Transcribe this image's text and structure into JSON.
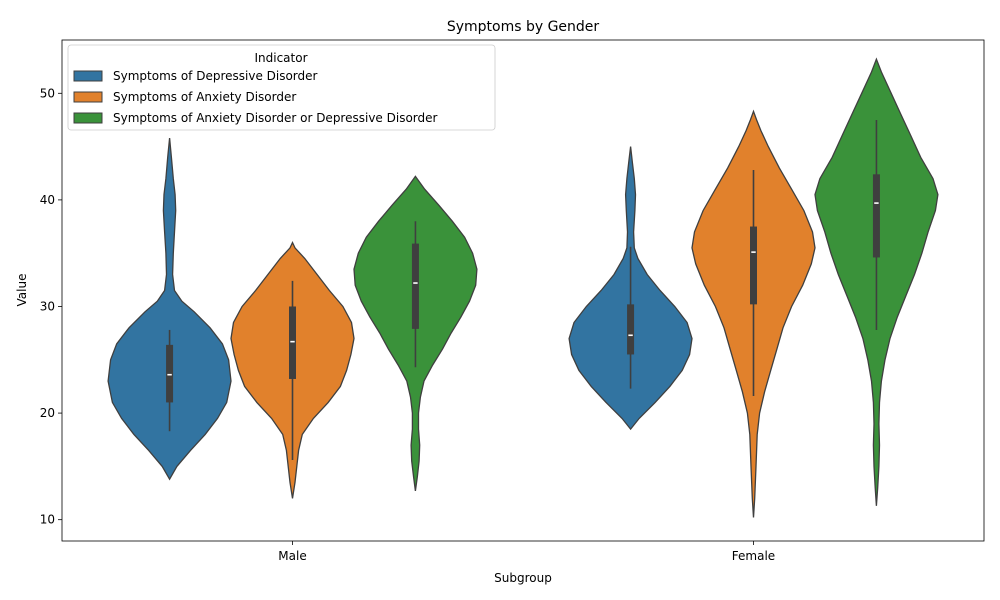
{
  "chart_data": {
    "type": "violin",
    "title": "Symptoms by Gender",
    "xlabel": "Subgroup",
    "ylabel": "Value",
    "ylim": [
      8,
      55
    ],
    "yticks": [
      10,
      20,
      30,
      40,
      50
    ],
    "categories": [
      "Male",
      "Female"
    ],
    "legend": {
      "title": "Indicator",
      "placement": "upper-left"
    },
    "series": [
      {
        "name": "Symptoms of Depressive Disorder",
        "color": "#3274a1",
        "groups": [
          {
            "category": "Male",
            "kde_range": [
              13.8,
              45.8
            ],
            "whisker": [
              18.3,
              27.8
            ],
            "q1": 21.0,
            "median": 23.6,
            "q3": 26.4,
            "density": [
              [
                13.8,
                0
              ],
              [
                15,
                0.12
              ],
              [
                16.5,
                0.34
              ],
              [
                18,
                0.58
              ],
              [
                19.5,
                0.78
              ],
              [
                21,
                0.93
              ],
              [
                23,
                1.0
              ],
              [
                25,
                0.96
              ],
              [
                26.5,
                0.86
              ],
              [
                28,
                0.66
              ],
              [
                29.5,
                0.4
              ],
              [
                30.5,
                0.2
              ],
              [
                31.5,
                0.08
              ],
              [
                33,
                0.05
              ],
              [
                35,
                0.06
              ],
              [
                37,
                0.08
              ],
              [
                39,
                0.1
              ],
              [
                40.5,
                0.09
              ],
              [
                42,
                0.06
              ],
              [
                44,
                0.03
              ],
              [
                45.8,
                0
              ]
            ]
          },
          {
            "category": "Female",
            "kde_range": [
              18.5,
              45.0
            ],
            "whisker": [
              22.3,
              35.6
            ],
            "q1": 25.5,
            "median": 27.3,
            "q3": 30.2,
            "density": [
              [
                18.5,
                0
              ],
              [
                19.5,
                0.14
              ],
              [
                21,
                0.4
              ],
              [
                22.5,
                0.64
              ],
              [
                24,
                0.84
              ],
              [
                25.5,
                0.96
              ],
              [
                27,
                1.0
              ],
              [
                28.5,
                0.92
              ],
              [
                30,
                0.72
              ],
              [
                31.5,
                0.48
              ],
              [
                33,
                0.27
              ],
              [
                34.5,
                0.12
              ],
              [
                35.5,
                0.06
              ],
              [
                37,
                0.05
              ],
              [
                39,
                0.07
              ],
              [
                40.5,
                0.08
              ],
              [
                42,
                0.06
              ],
              [
                43.5,
                0.03
              ],
              [
                45,
                0
              ]
            ]
          }
        ]
      },
      {
        "name": "Symptoms of Anxiety Disorder",
        "color": "#e1812c",
        "groups": [
          {
            "category": "Male",
            "kde_range": [
              12.0,
              36.0
            ],
            "whisker": [
              15.6,
              32.4
            ],
            "q1": 23.2,
            "median": 26.7,
            "q3": 30.0,
            "density": [
              [
                12,
                0
              ],
              [
                13.5,
                0.04
              ],
              [
                15,
                0.07
              ],
              [
                16.5,
                0.1
              ],
              [
                18,
                0.16
              ],
              [
                19.5,
                0.34
              ],
              [
                21,
                0.58
              ],
              [
                22.5,
                0.78
              ],
              [
                24,
                0.88
              ],
              [
                25.5,
                0.95
              ],
              [
                27,
                1.0
              ],
              [
                28.5,
                0.96
              ],
              [
                30,
                0.82
              ],
              [
                31.5,
                0.6
              ],
              [
                33,
                0.4
              ],
              [
                34.5,
                0.2
              ],
              [
                35.5,
                0.04
              ],
              [
                36,
                0
              ]
            ]
          },
          {
            "category": "Female",
            "kde_range": [
              10.2,
              48.3
            ],
            "whisker": [
              21.6,
              42.8
            ],
            "q1": 30.2,
            "median": 35.1,
            "q3": 37.5,
            "density": [
              [
                10.2,
                0
              ],
              [
                12,
                0.02
              ],
              [
                15,
                0.04
              ],
              [
                18,
                0.06
              ],
              [
                20,
                0.1
              ],
              [
                22,
                0.18
              ],
              [
                24,
                0.28
              ],
              [
                26,
                0.38
              ],
              [
                28,
                0.48
              ],
              [
                30,
                0.62
              ],
              [
                32,
                0.8
              ],
              [
                34,
                0.94
              ],
              [
                35.5,
                1.0
              ],
              [
                37,
                0.96
              ],
              [
                39,
                0.82
              ],
              [
                41,
                0.62
              ],
              [
                43,
                0.42
              ],
              [
                45,
                0.24
              ],
              [
                46.5,
                0.12
              ],
              [
                47.5,
                0.05
              ],
              [
                48.3,
                0
              ]
            ]
          }
        ]
      },
      {
        "name": "Symptoms of Anxiety Disorder or Depressive Disorder",
        "color": "#3a923a",
        "groups": [
          {
            "category": "Male",
            "kde_range": [
              12.7,
              42.2
            ],
            "whisker": [
              24.3,
              38.0
            ],
            "q1": 27.9,
            "median": 32.2,
            "q3": 35.9,
            "density": [
              [
                12.7,
                0
              ],
              [
                14,
                0.03
              ],
              [
                15.5,
                0.06
              ],
              [
                17,
                0.07
              ],
              [
                18.5,
                0.05
              ],
              [
                20,
                0.05
              ],
              [
                21.5,
                0.08
              ],
              [
                23,
                0.14
              ],
              [
                24.5,
                0.28
              ],
              [
                26,
                0.44
              ],
              [
                27.5,
                0.58
              ],
              [
                29,
                0.74
              ],
              [
                30.5,
                0.88
              ],
              [
                32,
                0.98
              ],
              [
                33.5,
                1.0
              ],
              [
                35,
                0.93
              ],
              [
                36.5,
                0.8
              ],
              [
                38,
                0.6
              ],
              [
                39.5,
                0.38
              ],
              [
                41,
                0.15
              ],
              [
                42.2,
                0
              ]
            ]
          },
          {
            "category": "Female",
            "kde_range": [
              11.3,
              53.2
            ],
            "whisker": [
              27.8,
              47.5
            ],
            "q1": 34.6,
            "median": 39.7,
            "q3": 42.4,
            "density": [
              [
                11.3,
                0
              ],
              [
                13,
                0.02
              ],
              [
                15,
                0.04
              ],
              [
                17,
                0.05
              ],
              [
                19,
                0.04
              ],
              [
                21,
                0.05
              ],
              [
                23,
                0.08
              ],
              [
                25,
                0.14
              ],
              [
                27,
                0.22
              ],
              [
                29,
                0.34
              ],
              [
                31,
                0.48
              ],
              [
                33,
                0.62
              ],
              [
                35,
                0.74
              ],
              [
                37,
                0.84
              ],
              [
                39,
                0.96
              ],
              [
                40.5,
                1.0
              ],
              [
                42,
                0.92
              ],
              [
                44,
                0.72
              ],
              [
                46,
                0.56
              ],
              [
                48,
                0.4
              ],
              [
                50,
                0.24
              ],
              [
                52,
                0.08
              ],
              [
                53.2,
                0
              ]
            ]
          }
        ]
      }
    ]
  }
}
